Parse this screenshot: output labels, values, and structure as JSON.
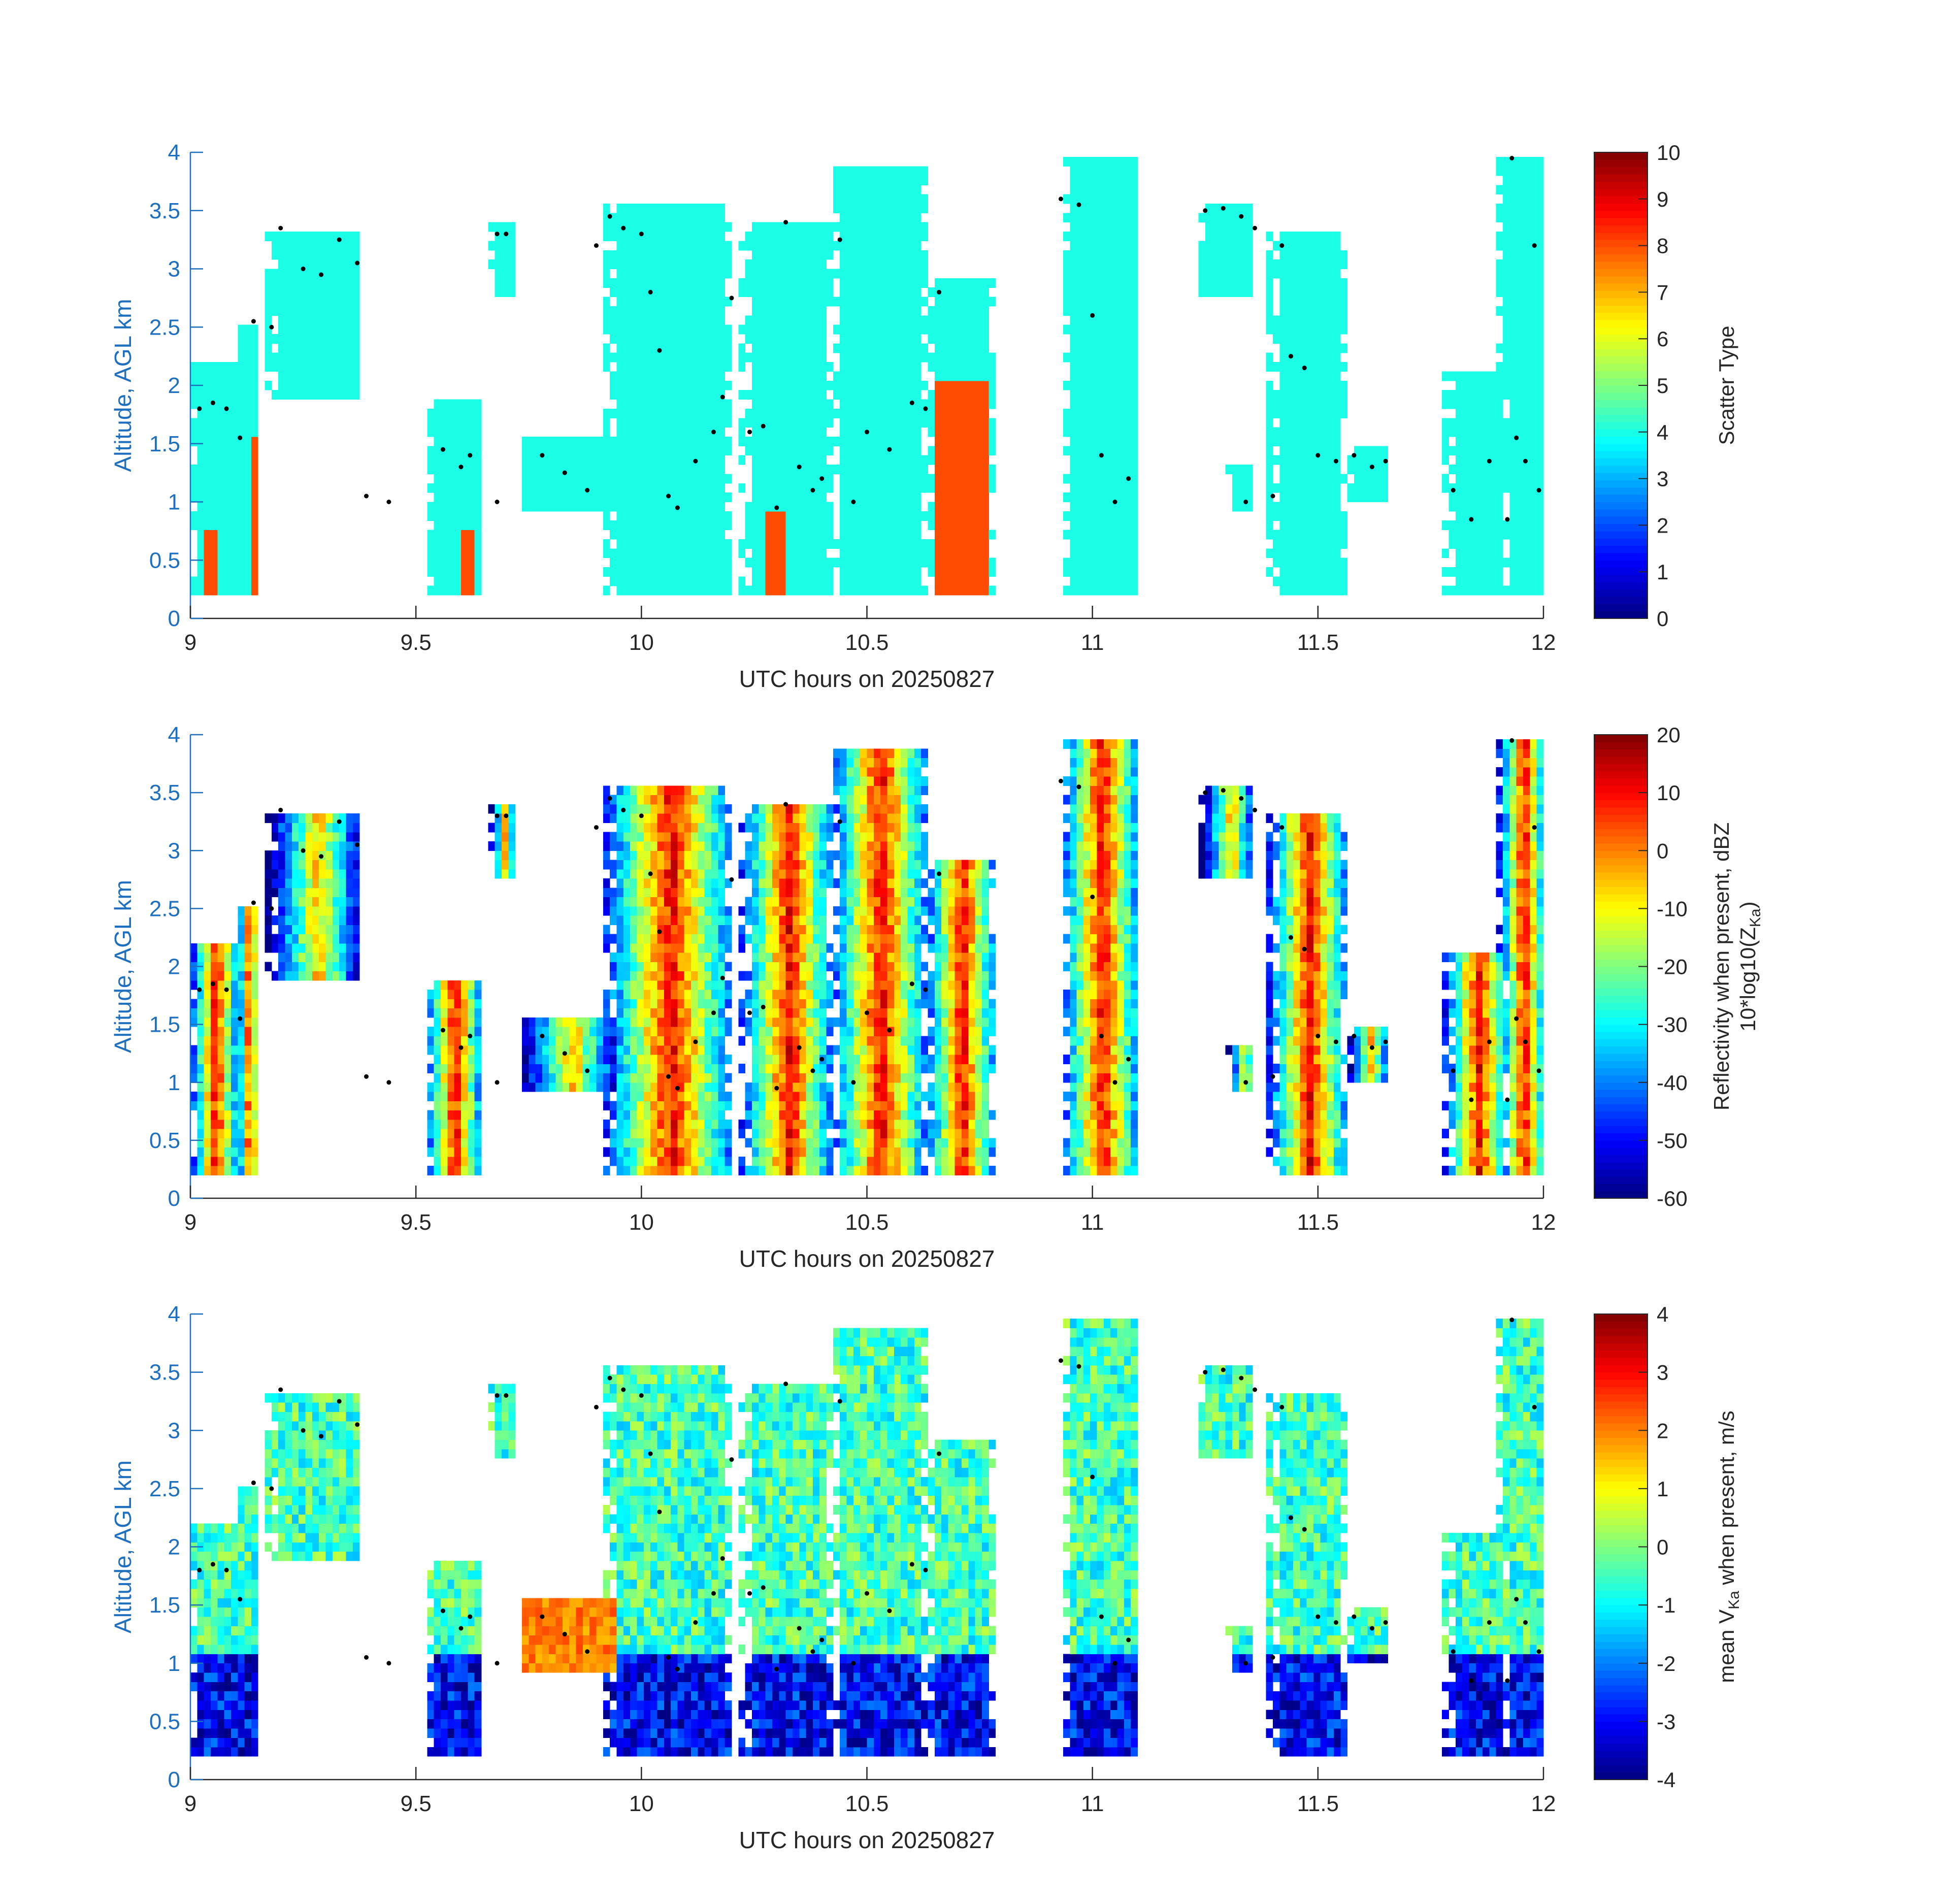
{
  "chart_data": [
    {
      "type": "heatmap",
      "xlabel": "UTC hours on 20250827",
      "ylabel": "Altitude, AGL km",
      "colorbar_label": [
        "Scatter Type"
      ],
      "xlim": [
        9,
        12
      ],
      "ylim": [
        0,
        4
      ],
      "xticks": [
        "9",
        "9.5",
        "10",
        "10.5",
        "11",
        "11.5",
        "12"
      ],
      "yticks": [
        "0",
        "0.5",
        "1",
        "1.5",
        "2",
        "2.5",
        "3",
        "3.5",
        "4"
      ],
      "clim": [
        0,
        10
      ],
      "cbar_ticks": [
        "0",
        "1",
        "2",
        "3",
        "4",
        "5",
        "6",
        "7",
        "8",
        "9",
        "10"
      ],
      "dominant_values": {
        "cloud": 4,
        "precipitation": 8
      },
      "colormap": "jet"
    },
    {
      "type": "heatmap",
      "xlabel": "UTC hours on 20250827",
      "ylabel": "Altitude, AGL km",
      "colorbar_label": [
        "Reflectivity when present, dBZ",
        "10*log10(Z",
        "Ka",
        ")"
      ],
      "xlim": [
        9,
        12
      ],
      "ylim": [
        0,
        4
      ],
      "xticks": [
        "9",
        "9.5",
        "10",
        "10.5",
        "11",
        "11.5",
        "12"
      ],
      "yticks": [
        "0",
        "0.5",
        "1",
        "1.5",
        "2",
        "2.5",
        "3",
        "3.5",
        "4"
      ],
      "clim": [
        -60,
        20
      ],
      "cbar_ticks": [
        "-60",
        "-50",
        "-40",
        "-30",
        "-20",
        "-10",
        "0",
        "10",
        "20"
      ],
      "colormap": "jet"
    },
    {
      "type": "heatmap",
      "xlabel": "UTC hours on 20250827",
      "ylabel": "Altitude, AGL km",
      "colorbar_label": [
        "mean V",
        "Ka",
        " when present, m/s"
      ],
      "xlim": [
        9,
        12
      ],
      "ylim": [
        0,
        4
      ],
      "xticks": [
        "9",
        "9.5",
        "10",
        "10.5",
        "11",
        "11.5",
        "12"
      ],
      "yticks": [
        "0",
        "0.5",
        "1",
        "1.5",
        "2",
        "2.5",
        "3",
        "3.5",
        "4"
      ],
      "clim": [
        -4,
        4
      ],
      "cbar_ticks": [
        "-4",
        "-3",
        "-2",
        "-1",
        "0",
        "1",
        "2",
        "3",
        "4"
      ],
      "colormap": "jet"
    }
  ],
  "cells": [
    {
      "x0": 9.0,
      "x1": 9.1,
      "y0": 0.2,
      "y1": 2.2
    },
    {
      "x0": 9.1,
      "x1": 9.15,
      "y0": 0.2,
      "y1": 2.5
    },
    {
      "x0": 9.17,
      "x1": 9.38,
      "y0": 1.9,
      "y1": 3.35
    },
    {
      "x0": 9.52,
      "x1": 9.64,
      "y0": 0.2,
      "y1": 1.9
    },
    {
      "x0": 9.66,
      "x1": 9.72,
      "y0": 2.8,
      "y1": 3.4
    },
    {
      "x0": 9.73,
      "x1": 9.95,
      "y0": 0.9,
      "y1": 1.6
    },
    {
      "x0": 9.92,
      "x1": 10.2,
      "y0": 0.2,
      "y1": 3.6
    },
    {
      "x0": 10.22,
      "x1": 10.42,
      "y0": 0.2,
      "y1": 3.4
    },
    {
      "x0": 10.42,
      "x1": 10.63,
      "y0": 0.2,
      "y1": 3.9
    },
    {
      "x0": 10.63,
      "x1": 10.78,
      "y0": 0.2,
      "y1": 2.9
    },
    {
      "x0": 10.93,
      "x1": 11.1,
      "y0": 0.2,
      "y1": 4.0
    },
    {
      "x0": 11.24,
      "x1": 11.36,
      "y0": 2.8,
      "y1": 3.55
    },
    {
      "x0": 11.3,
      "x1": 11.36,
      "y0": 0.9,
      "y1": 1.3
    },
    {
      "x0": 11.39,
      "x1": 11.56,
      "y0": 0.2,
      "y1": 3.3
    },
    {
      "x0": 11.56,
      "x1": 11.66,
      "y0": 1.0,
      "y1": 1.45
    },
    {
      "x0": 11.78,
      "x1": 11.92,
      "y0": 0.2,
      "y1": 2.1
    },
    {
      "x0": 11.9,
      "x1": 12.0,
      "y0": 0.2,
      "y1": 4.0
    }
  ],
  "cloud_top_markers": [
    [
      9.02,
      1.8
    ],
    [
      9.05,
      1.85
    ],
    [
      9.08,
      1.8
    ],
    [
      9.11,
      1.55
    ],
    [
      9.14,
      2.55
    ],
    [
      9.18,
      2.5
    ],
    [
      9.2,
      3.35
    ],
    [
      9.25,
      3.0
    ],
    [
      9.29,
      2.95
    ],
    [
      9.33,
      3.25
    ],
    [
      9.37,
      3.05
    ],
    [
      9.39,
      1.05
    ],
    [
      9.44,
      1.0
    ],
    [
      9.56,
      1.45
    ],
    [
      9.6,
      1.3
    ],
    [
      9.62,
      1.4
    ],
    [
      9.68,
      3.3
    ],
    [
      9.7,
      3.3
    ],
    [
      9.68,
      1.0
    ],
    [
      9.78,
      1.4
    ],
    [
      9.83,
      1.25
    ],
    [
      9.88,
      1.1
    ],
    [
      9.9,
      3.2
    ],
    [
      9.93,
      3.45
    ],
    [
      9.96,
      3.35
    ],
    [
      10.0,
      3.3
    ],
    [
      10.02,
      2.8
    ],
    [
      10.04,
      2.3
    ],
    [
      10.06,
      1.05
    ],
    [
      10.08,
      0.95
    ],
    [
      10.12,
      1.35
    ],
    [
      10.16,
      1.6
    ],
    [
      10.18,
      1.9
    ],
    [
      10.2,
      2.75
    ],
    [
      10.24,
      1.6
    ],
    [
      10.27,
      1.65
    ],
    [
      10.3,
      0.95
    ],
    [
      10.32,
      3.4
    ],
    [
      10.35,
      1.3
    ],
    [
      10.38,
      1.1
    ],
    [
      10.4,
      1.2
    ],
    [
      10.44,
      3.25
    ],
    [
      10.47,
      1.0
    ],
    [
      10.5,
      1.6
    ],
    [
      10.55,
      1.45
    ],
    [
      10.6,
      1.85
    ],
    [
      10.63,
      1.8
    ],
    [
      10.66,
      2.8
    ],
    [
      10.93,
      3.6
    ],
    [
      10.97,
      3.55
    ],
    [
      11.0,
      2.6
    ],
    [
      11.02,
      1.4
    ],
    [
      11.05,
      1.0
    ],
    [
      11.08,
      1.2
    ],
    [
      11.25,
      3.5
    ],
    [
      11.29,
      3.52
    ],
    [
      11.33,
      3.45
    ],
    [
      11.36,
      3.35
    ],
    [
      11.42,
      3.2
    ],
    [
      11.44,
      2.25
    ],
    [
      11.47,
      2.15
    ],
    [
      11.5,
      1.4
    ],
    [
      11.54,
      1.35
    ],
    [
      11.58,
      1.4
    ],
    [
      11.62,
      1.3
    ],
    [
      11.65,
      1.35
    ],
    [
      11.8,
      1.1
    ],
    [
      11.84,
      0.85
    ],
    [
      11.88,
      1.35
    ],
    [
      11.92,
      0.85
    ],
    [
      11.94,
      1.55
    ],
    [
      11.96,
      1.35
    ],
    [
      11.93,
      3.95
    ],
    [
      11.98,
      3.2
    ],
    [
      11.99,
      1.1
    ],
    [
      11.34,
      1.0
    ],
    [
      11.4,
      1.05
    ]
  ]
}
